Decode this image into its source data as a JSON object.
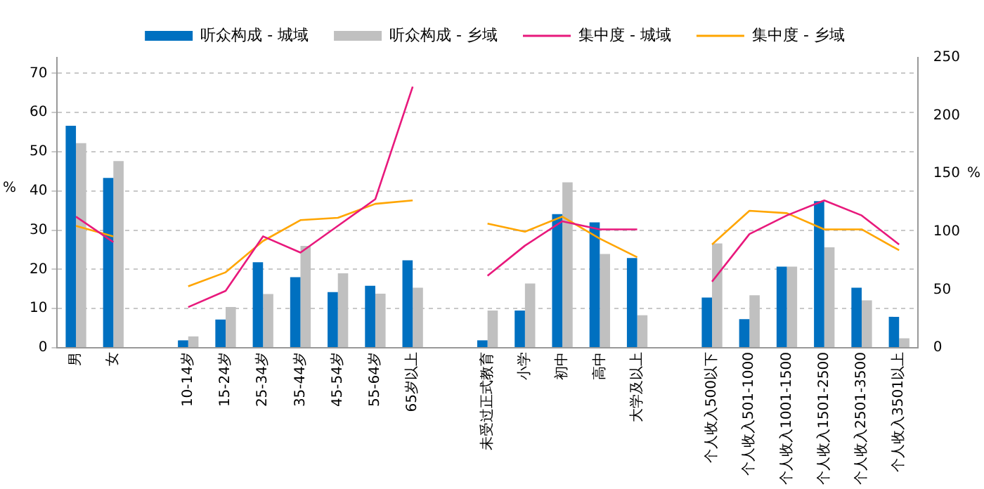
{
  "chart_data": {
    "type": "bar",
    "categories": [
      "男",
      "女",
      null,
      "10-14岁",
      "15-24岁",
      "25-34岁",
      "35-44岁",
      "45-54岁",
      "55-64岁",
      "65岁以上",
      null,
      "未受过正式教育",
      "小学",
      "初中",
      "高中",
      "大学及以上",
      null,
      "个人收入500以下",
      "个人收入501-1000",
      "个人收入1001-1500",
      "个人收入1501-2500",
      "个人收入2501-3500",
      "个人收入3501以上"
    ],
    "series": [
      {
        "name": "听众构成 - 城域",
        "color": "#0070c0",
        "values": [
          56.6,
          43.3,
          null,
          1.9,
          7.2,
          21.8,
          18,
          14.2,
          15.8,
          22.3,
          null,
          1.9,
          9.5,
          34.1,
          32,
          22.9,
          null,
          12.8,
          7.3,
          20.7,
          37.4,
          15.3,
          7.9
        ]
      },
      {
        "name": "听众构成 - 乡域",
        "color": "#c0c0c0",
        "values": [
          52.2,
          47.6,
          null,
          2.9,
          10.4,
          13.7,
          26,
          19,
          13.8,
          15.3,
          null,
          9.5,
          16.4,
          42.2,
          23.9,
          8.3,
          null,
          26.6,
          13.4,
          20.7,
          25.6,
          12.1,
          2.4
        ]
      },
      {
        "name": "集中度 - 城域",
        "color": "#e8197c",
        "type": "line",
        "axis": "y2",
        "values": [
          113,
          91,
          null,
          35,
          49,
          96,
          82,
          105,
          128,
          225,
          null,
          62,
          88,
          109,
          102,
          102,
          null,
          57,
          98,
          114,
          127,
          114,
          89
        ]
      },
      {
        "name": "集中度 - 乡域",
        "color": "#ffa500",
        "type": "line",
        "axis": "y2",
        "values": [
          105,
          96,
          null,
          53,
          65,
          92,
          110,
          112,
          124,
          127,
          null,
          107,
          100,
          113,
          94,
          78,
          null,
          89,
          118,
          116,
          102,
          102,
          84
        ]
      }
    ],
    "ylabel": "%",
    "y2label": "%",
    "ylim": [
      0,
      74
    ],
    "yticks": [
      0,
      10,
      20,
      30,
      40,
      50,
      60,
      70
    ],
    "y2lim": [
      0,
      250
    ],
    "y2ticks": [
      0,
      50,
      100,
      150,
      200,
      250
    ],
    "grid": "y",
    "legend": "top",
    "marker": "none",
    "line_style": "solid"
  }
}
